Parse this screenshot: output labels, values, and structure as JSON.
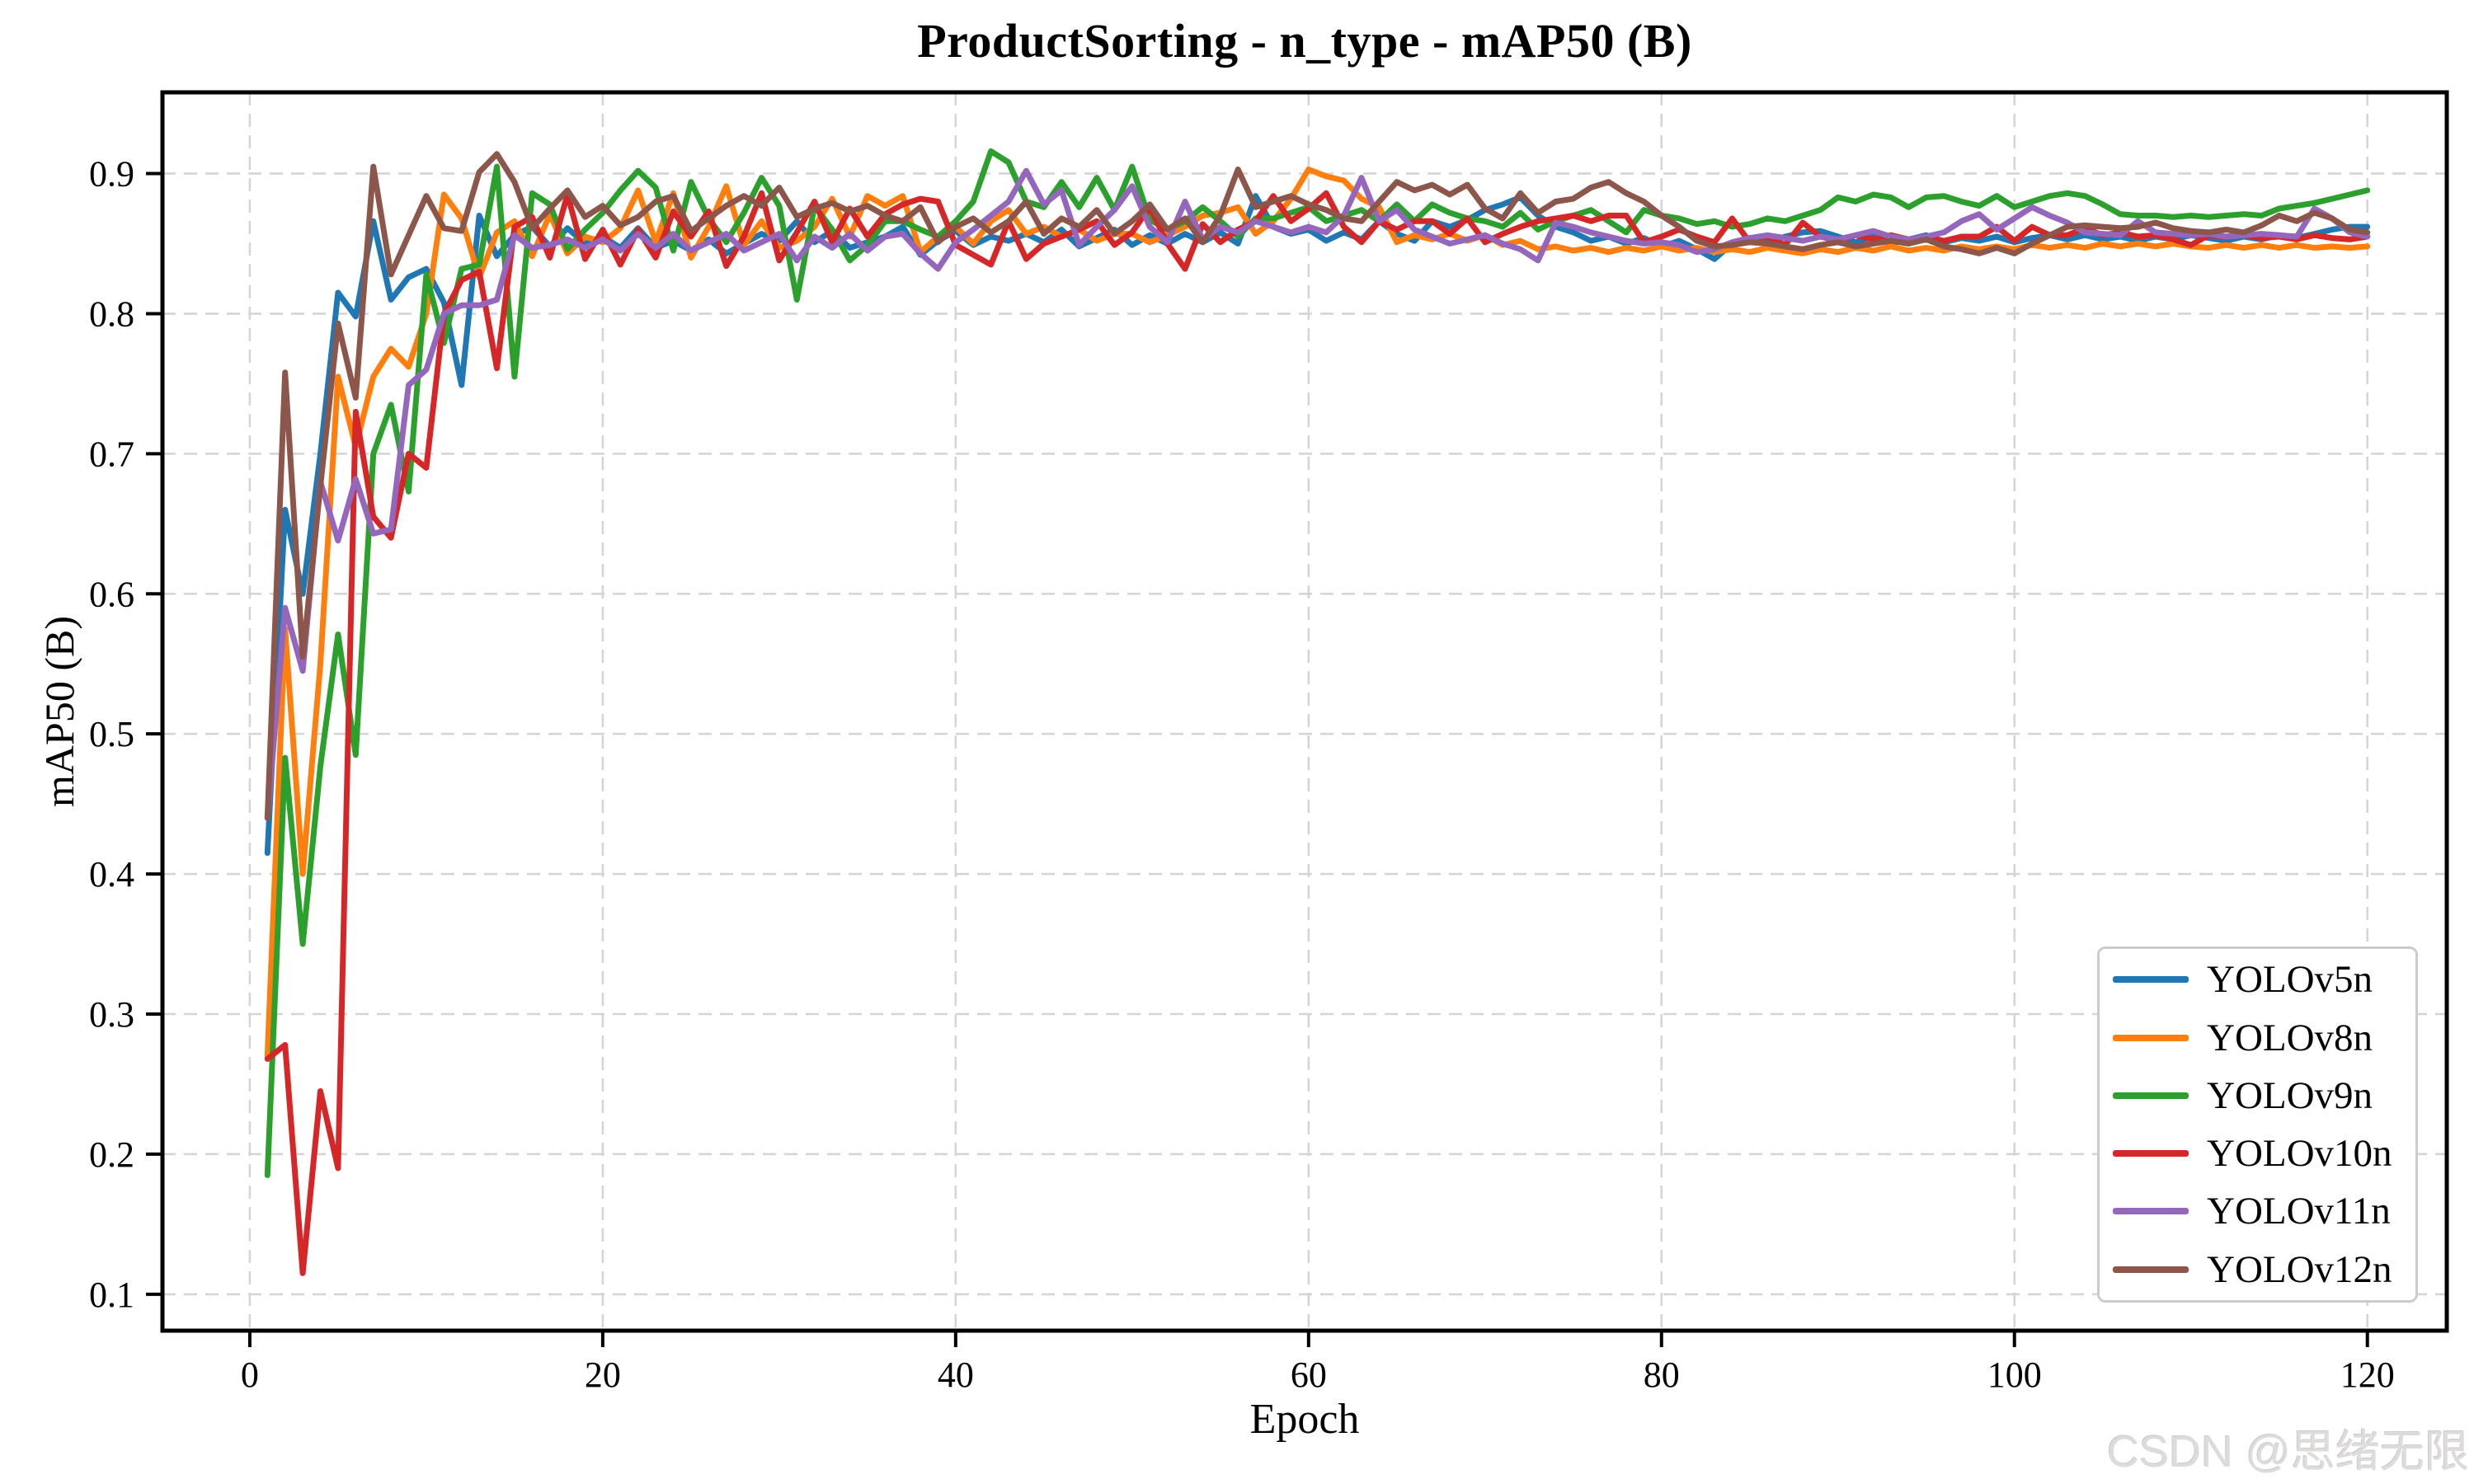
{
  "watermark": {
    "text": "CSDN @思绪无限",
    "color": "#dedbdb"
  },
  "chart_data": {
    "type": "line",
    "title": "ProductSorting - n_type - mAP50 (B)",
    "xlabel": "Epoch",
    "ylabel": "mAP50 (B)",
    "x_ticks": [
      0,
      20,
      40,
      60,
      80,
      100,
      120
    ],
    "y_ticks": [
      0.1,
      0.2,
      0.3,
      0.4,
      0.5,
      0.6,
      0.7,
      0.8,
      0.9
    ],
    "xlim": [
      -4.95,
      124.5
    ],
    "ylim": [
      0.074,
      0.958
    ],
    "grid": "dashed",
    "grid_color": "#d4d4d4",
    "legend_position": "lower right",
    "x_start_epoch": 1,
    "series": [
      {
        "name": "YOLOv5n",
        "color": "#1f77b4",
        "values": [
          0.415,
          0.66,
          0.6,
          0.7,
          0.815,
          0.798,
          0.866,
          0.81,
          0.826,
          0.832,
          0.808,
          0.749,
          0.87,
          0.841,
          0.856,
          0.862,
          0.848,
          0.861,
          0.85,
          0.855,
          0.847,
          0.861,
          0.847,
          0.852,
          0.845,
          0.853,
          0.843,
          0.85,
          0.857,
          0.852,
          0.866,
          0.851,
          0.859,
          0.847,
          0.851,
          0.855,
          0.862,
          0.842,
          0.852,
          0.859,
          0.849,
          0.855,
          0.852,
          0.857,
          0.851,
          0.86,
          0.848,
          0.854,
          0.86,
          0.849,
          0.856,
          0.85,
          0.857,
          0.851,
          0.858,
          0.85,
          0.884,
          0.862,
          0.857,
          0.86,
          0.852,
          0.858,
          0.853,
          0.866,
          0.857,
          0.852,
          0.866,
          0.862,
          0.867,
          0.874,
          0.878,
          0.883,
          0.87,
          0.862,
          0.858,
          0.852,
          0.855,
          0.85,
          0.854,
          0.848,
          0.852,
          0.846,
          0.839,
          0.85,
          0.854,
          0.851,
          0.855,
          0.858,
          0.859,
          0.855,
          0.851,
          0.855,
          0.85,
          0.853,
          0.856,
          0.851,
          0.854,
          0.852,
          0.855,
          0.851,
          0.854,
          0.856,
          0.853,
          0.856,
          0.853,
          0.855,
          0.852,
          0.855,
          0.853,
          0.856,
          0.854,
          0.852,
          0.855,
          0.853,
          0.856,
          0.854,
          0.857,
          0.86,
          0.862,
          0.862
        ]
      },
      {
        "name": "YOLOv8n",
        "color": "#ff7f0e",
        "values": [
          0.27,
          0.575,
          0.4,
          0.55,
          0.755,
          0.705,
          0.755,
          0.775,
          0.762,
          0.8,
          0.885,
          0.868,
          0.826,
          0.858,
          0.866,
          0.841,
          0.871,
          0.843,
          0.855,
          0.851,
          0.861,
          0.888,
          0.851,
          0.886,
          0.84,
          0.862,
          0.891,
          0.849,
          0.866,
          0.847,
          0.852,
          0.862,
          0.882,
          0.855,
          0.884,
          0.877,
          0.884,
          0.844,
          0.855,
          0.862,
          0.85,
          0.866,
          0.874,
          0.857,
          0.862,
          0.855,
          0.86,
          0.852,
          0.857,
          0.857,
          0.851,
          0.856,
          0.862,
          0.87,
          0.872,
          0.876,
          0.857,
          0.866,
          0.882,
          0.903,
          0.898,
          0.895,
          0.882,
          0.876,
          0.851,
          0.856,
          0.853,
          0.857,
          0.852,
          0.856,
          0.849,
          0.852,
          0.846,
          0.848,
          0.845,
          0.847,
          0.844,
          0.847,
          0.845,
          0.848,
          0.845,
          0.847,
          0.844,
          0.846,
          0.844,
          0.847,
          0.845,
          0.843,
          0.846,
          0.844,
          0.847,
          0.845,
          0.848,
          0.845,
          0.847,
          0.845,
          0.848,
          0.846,
          0.848,
          0.846,
          0.849,
          0.847,
          0.849,
          0.847,
          0.85,
          0.848,
          0.85,
          0.848,
          0.85,
          0.848,
          0.847,
          0.849,
          0.847,
          0.849,
          0.847,
          0.849,
          0.847,
          0.848,
          0.847,
          0.848
        ]
      },
      {
        "name": "YOLOv9n",
        "color": "#2ca02c",
        "values": [
          0.185,
          0.483,
          0.35,
          0.477,
          0.571,
          0.485,
          0.7,
          0.735,
          0.673,
          0.828,
          0.779,
          0.832,
          0.835,
          0.905,
          0.755,
          0.886,
          0.878,
          0.846,
          0.86,
          0.872,
          0.888,
          0.902,
          0.89,
          0.845,
          0.894,
          0.868,
          0.851,
          0.872,
          0.897,
          0.877,
          0.81,
          0.877,
          0.86,
          0.838,
          0.849,
          0.866,
          0.866,
          0.86,
          0.855,
          0.866,
          0.88,
          0.916,
          0.908,
          0.88,
          0.876,
          0.894,
          0.876,
          0.897,
          0.874,
          0.905,
          0.867,
          0.86,
          0.866,
          0.876,
          0.866,
          0.855,
          0.868,
          0.868,
          0.872,
          0.876,
          0.866,
          0.87,
          0.874,
          0.866,
          0.878,
          0.866,
          0.878,
          0.872,
          0.868,
          0.866,
          0.862,
          0.872,
          0.86,
          0.866,
          0.87,
          0.874,
          0.866,
          0.858,
          0.874,
          0.87,
          0.868,
          0.864,
          0.866,
          0.862,
          0.864,
          0.868,
          0.866,
          0.87,
          0.874,
          0.883,
          0.88,
          0.885,
          0.883,
          0.876,
          0.883,
          0.884,
          0.88,
          0.877,
          0.884,
          0.876,
          0.88,
          0.884,
          0.886,
          0.884,
          0.878,
          0.871,
          0.87,
          0.87,
          0.869,
          0.87,
          0.869,
          0.87,
          0.871,
          0.87,
          0.875,
          0.877,
          0.879,
          0.882,
          0.885,
          0.888
        ]
      },
      {
        "name": "YOLOv10n",
        "color": "#d62728",
        "values": [
          0.268,
          0.278,
          0.115,
          0.245,
          0.19,
          0.73,
          0.655,
          0.64,
          0.7,
          0.69,
          0.8,
          0.824,
          0.83,
          0.761,
          0.862,
          0.869,
          0.84,
          0.885,
          0.839,
          0.86,
          0.835,
          0.86,
          0.84,
          0.873,
          0.855,
          0.873,
          0.834,
          0.855,
          0.886,
          0.838,
          0.858,
          0.88,
          0.851,
          0.875,
          0.855,
          0.871,
          0.878,
          0.882,
          0.88,
          0.849,
          0.842,
          0.835,
          0.866,
          0.839,
          0.85,
          0.855,
          0.86,
          0.866,
          0.849,
          0.858,
          0.876,
          0.85,
          0.832,
          0.864,
          0.851,
          0.86,
          0.866,
          0.884,
          0.866,
          0.875,
          0.886,
          0.862,
          0.851,
          0.866,
          0.86,
          0.866,
          0.866,
          0.857,
          0.868,
          0.851,
          0.857,
          0.862,
          0.866,
          0.868,
          0.87,
          0.866,
          0.87,
          0.87,
          0.851,
          0.855,
          0.86,
          0.855,
          0.851,
          0.868,
          0.851,
          0.855,
          0.849,
          0.865,
          0.855,
          0.852,
          0.856,
          0.853,
          0.856,
          0.853,
          0.855,
          0.852,
          0.855,
          0.855,
          0.862,
          0.852,
          0.862,
          0.856,
          0.856,
          0.861,
          0.856,
          0.858,
          0.855,
          0.856,
          0.853,
          0.849,
          0.856,
          0.855,
          0.856,
          0.854,
          0.855,
          0.853,
          0.856,
          0.854,
          0.853,
          0.855
        ]
      },
      {
        "name": "YOLOv11n",
        "color": "#9467bd",
        "values": [
          0.44,
          0.59,
          0.545,
          0.68,
          0.638,
          0.682,
          0.643,
          0.646,
          0.749,
          0.76,
          0.8,
          0.806,
          0.806,
          0.81,
          0.856,
          0.847,
          0.849,
          0.853,
          0.847,
          0.853,
          0.845,
          0.857,
          0.847,
          0.857,
          0.845,
          0.851,
          0.857,
          0.845,
          0.851,
          0.857,
          0.838,
          0.855,
          0.847,
          0.857,
          0.845,
          0.855,
          0.857,
          0.843,
          0.832,
          0.851,
          0.86,
          0.87,
          0.88,
          0.902,
          0.878,
          0.888,
          0.849,
          0.862,
          0.874,
          0.891,
          0.862,
          0.851,
          0.88,
          0.853,
          0.862,
          0.858,
          0.866,
          0.862,
          0.858,
          0.862,
          0.858,
          0.87,
          0.897,
          0.866,
          0.874,
          0.86,
          0.855,
          0.85,
          0.853,
          0.856,
          0.85,
          0.846,
          0.838,
          0.865,
          0.862,
          0.858,
          0.855,
          0.852,
          0.85,
          0.851,
          0.849,
          0.844,
          0.846,
          0.851,
          0.854,
          0.856,
          0.854,
          0.852,
          0.855,
          0.853,
          0.856,
          0.859,
          0.855,
          0.853,
          0.855,
          0.858,
          0.866,
          0.871,
          0.86,
          0.868,
          0.876,
          0.87,
          0.865,
          0.858,
          0.857,
          0.856,
          0.866,
          0.858,
          0.857,
          0.856,
          0.857,
          0.855,
          0.856,
          0.857,
          0.856,
          0.855,
          0.875,
          0.868,
          0.858,
          0.855
        ]
      },
      {
        "name": "YOLOv12n",
        "color": "#8c564b",
        "values": [
          0.44,
          0.758,
          0.555,
          0.677,
          0.793,
          0.74,
          0.905,
          0.828,
          0.856,
          0.884,
          0.861,
          0.859,
          0.901,
          0.914,
          0.894,
          0.861,
          0.875,
          0.888,
          0.869,
          0.877,
          0.863,
          0.869,
          0.88,
          0.884,
          0.859,
          0.868,
          0.877,
          0.884,
          0.877,
          0.89,
          0.869,
          0.875,
          0.879,
          0.873,
          0.877,
          0.87,
          0.866,
          0.876,
          0.851,
          0.862,
          0.868,
          0.858,
          0.866,
          0.88,
          0.857,
          0.868,
          0.862,
          0.874,
          0.857,
          0.866,
          0.878,
          0.86,
          0.868,
          0.851,
          0.87,
          0.903,
          0.876,
          0.88,
          0.884,
          0.878,
          0.874,
          0.868,
          0.866,
          0.88,
          0.894,
          0.888,
          0.892,
          0.885,
          0.892,
          0.875,
          0.868,
          0.886,
          0.872,
          0.88,
          0.882,
          0.89,
          0.894,
          0.886,
          0.88,
          0.87,
          0.862,
          0.852,
          0.848,
          0.849,
          0.851,
          0.85,
          0.848,
          0.846,
          0.849,
          0.851,
          0.848,
          0.85,
          0.852,
          0.85,
          0.853,
          0.848,
          0.846,
          0.843,
          0.847,
          0.843,
          0.85,
          0.856,
          0.862,
          0.863,
          0.862,
          0.861,
          0.862,
          0.865,
          0.861,
          0.859,
          0.858,
          0.86,
          0.858,
          0.863,
          0.87,
          0.866,
          0.872,
          0.868,
          0.86,
          0.858
        ]
      }
    ]
  }
}
